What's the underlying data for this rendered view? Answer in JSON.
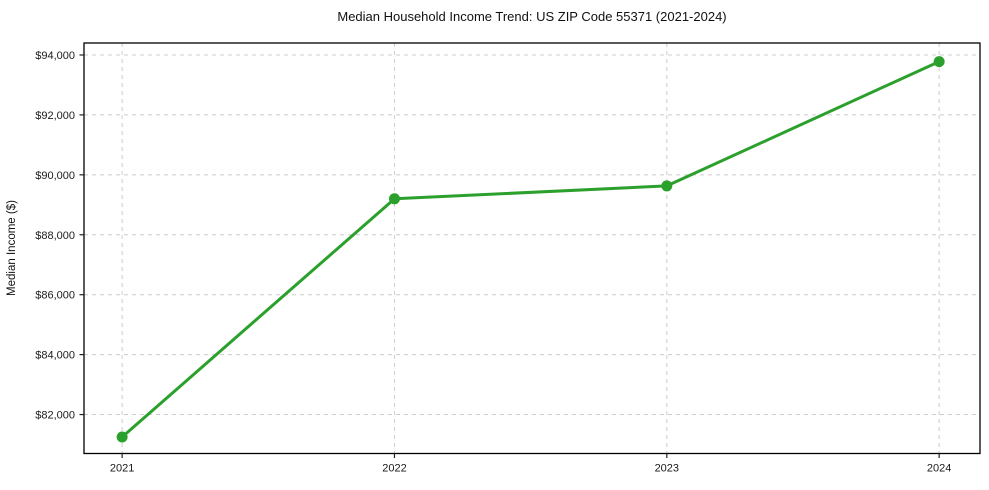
{
  "chart_data": {
    "type": "line",
    "title": "Median Household Income Trend: US ZIP Code 55371 (2021-2024)",
    "xlabel": "",
    "ylabel": "Median Income ($)",
    "series": [
      {
        "name": "Median Household Income",
        "x": [
          2021,
          2022,
          2023,
          2024
        ],
        "values": [
          81250,
          89200,
          89630,
          93780
        ]
      }
    ],
    "xticks": {
      "values": [
        2021,
        2022,
        2023,
        2024
      ],
      "labels": [
        "2021",
        "2022",
        "2023",
        "2024"
      ]
    },
    "yticks": {
      "values": [
        82000,
        84000,
        86000,
        88000,
        90000,
        92000,
        94000
      ],
      "labels": [
        "$82,000",
        "$84,000",
        "$86,000",
        "$88,000",
        "$90,000",
        "$92,000",
        "$94,000"
      ]
    },
    "xlim": [
      2020.86,
      2024.15
    ],
    "ylim": [
      80700,
      94400
    ],
    "grid": true,
    "legend": "none",
    "colors": {
      "line": "#2ca02c",
      "marker": "#2ca02c",
      "grid": "#cccccc",
      "background": "#ffffff",
      "text": "#1a1a1a"
    },
    "marker_radius": 5.5
  }
}
